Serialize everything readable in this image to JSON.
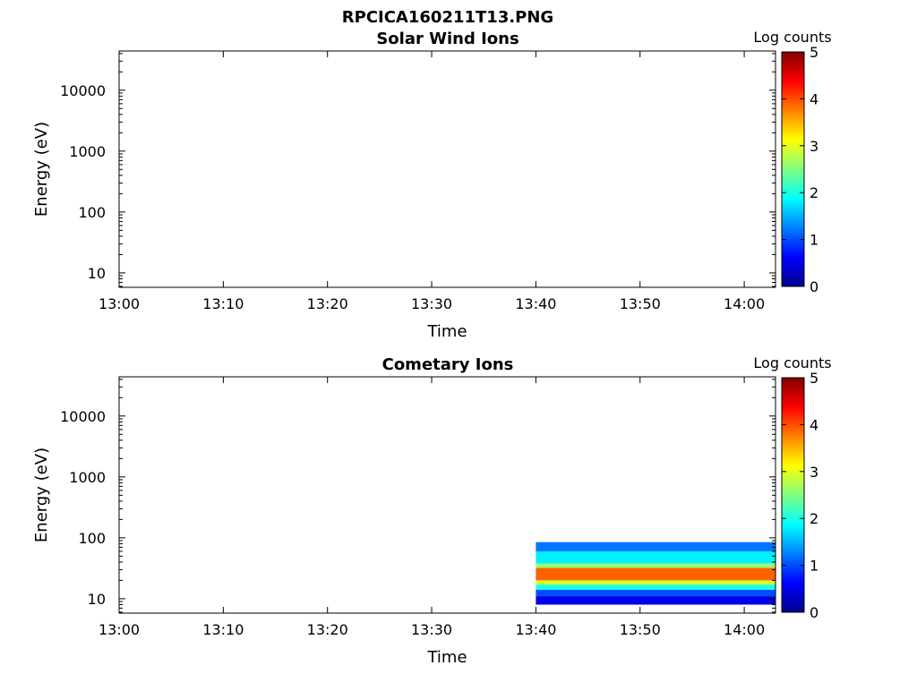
{
  "figure_title": "RPCICA160211T13.PNG",
  "colors": {
    "colormap": [
      "#00008f",
      "#0000ff",
      "#0080ff",
      "#00ffff",
      "#80ff80",
      "#ffff00",
      "#ff8000",
      "#ff0000",
      "#800000"
    ]
  },
  "chart_data": [
    {
      "type": "heatmap",
      "title": "Solar Wind Ions",
      "xlabel": "Time",
      "ylabel": "Energy (eV)",
      "x_ticks": [
        "13:00",
        "13:10",
        "13:20",
        "13:30",
        "13:40",
        "13:50",
        "14:00"
      ],
      "x_range": [
        "13:00",
        "14:03"
      ],
      "y_scale": "log",
      "y_ticks": [
        "10",
        "100",
        "1000",
        "10000"
      ],
      "y_range": [
        5.8,
        44000
      ],
      "colorbar": {
        "label": "Log counts",
        "range": [
          0,
          5
        ],
        "ticks": [
          "0",
          "1",
          "2",
          "3",
          "4",
          "5"
        ]
      },
      "data": []
    },
    {
      "type": "heatmap",
      "title": "Cometary Ions",
      "xlabel": "Time",
      "ylabel": "Energy (eV)",
      "x_ticks": [
        "13:00",
        "13:10",
        "13:20",
        "13:30",
        "13:40",
        "13:50",
        "14:00"
      ],
      "x_range": [
        "13:00",
        "14:03"
      ],
      "y_scale": "log",
      "y_ticks": [
        "10",
        "100",
        "1000",
        "10000"
      ],
      "y_range": [
        5.8,
        44000
      ],
      "colorbar": {
        "label": "Log counts",
        "range": [
          0,
          5
        ],
        "ticks": [
          "0",
          "1",
          "2",
          "3",
          "4",
          "5"
        ]
      },
      "data": [
        {
          "time_range": [
            "13:40",
            "14:03"
          ],
          "energy_eV": [
            60,
            85
          ],
          "log_counts": 1.2
        },
        {
          "time_range": [
            "13:40",
            "14:03"
          ],
          "energy_eV": [
            38,
            60
          ],
          "log_counts": 1.8
        },
        {
          "time_range": [
            "13:40",
            "14:03"
          ],
          "energy_eV": [
            32,
            38
          ],
          "log_counts": 2.6
        },
        {
          "time_range": [
            "13:40",
            "14:03"
          ],
          "energy_eV": [
            20,
            32
          ],
          "log_counts": 3.9
        },
        {
          "time_range": [
            "13:40",
            "14:03"
          ],
          "energy_eV": [
            17,
            20
          ],
          "log_counts": 2.9
        },
        {
          "time_range": [
            "13:40",
            "14:03"
          ],
          "energy_eV": [
            14,
            17
          ],
          "log_counts": 2.0
        },
        {
          "time_range": [
            "13:40",
            "14:03"
          ],
          "energy_eV": [
            11,
            14
          ],
          "log_counts": 1.0
        },
        {
          "time_range": [
            "13:40",
            "14:03"
          ],
          "energy_eV": [
            8,
            11
          ],
          "log_counts": 0.5
        }
      ]
    }
  ]
}
